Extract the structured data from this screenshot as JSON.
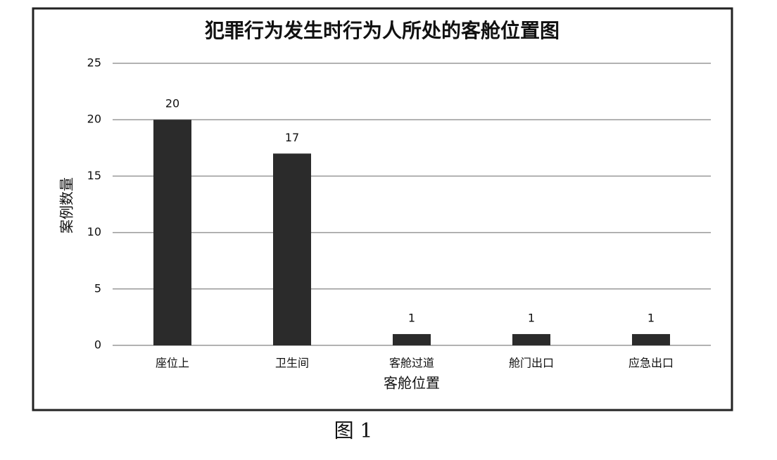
{
  "chart_data": {
    "type": "bar",
    "title": "犯罪行为发生时行为人所处的客舱位置图",
    "categories": [
      "座位上",
      "卫生间",
      "客舱过道",
      "舱门出口",
      "应急出口"
    ],
    "values": [
      20,
      17,
      1,
      1,
      1
    ],
    "color": "#2b2b2b",
    "x_label": "客舱位置",
    "y_label": "案例数量",
    "ylim": [
      0,
      25
    ],
    "yticks": [
      0,
      5,
      10,
      15,
      20,
      25
    ],
    "grid": true,
    "value_labels_shown": true
  },
  "caption": "图 1"
}
